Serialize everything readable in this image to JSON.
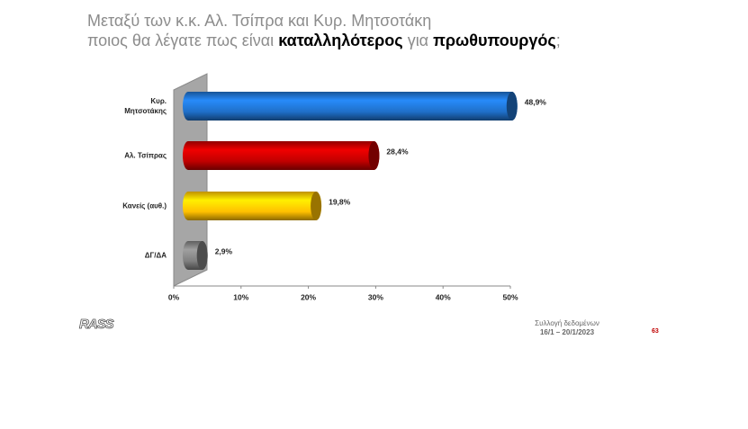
{
  "chart_data": {
    "type": "bar",
    "orientation": "horizontal",
    "title": [
      "Μεταξύ των κ.κ. Αλ. Τσίπρα και Κυρ. Μητσοτάκη",
      "ποιος θα λέγατε πως είναι",
      "καταλληλότερος",
      "για",
      "πρωθυπουργός",
      ";"
    ],
    "categories": [
      "Κυρ.\nΜητσοτάκης",
      "Αλ. Τσίπρας",
      "Κανείς (αυθ.)",
      "ΔΓ/ΔΑ"
    ],
    "values": [
      48.9,
      28.4,
      19.8,
      2.9
    ],
    "value_labels": [
      "48,9%",
      "28,4%",
      "19,8%",
      "2,9%"
    ],
    "colors": [
      "#1f6fc8",
      "#c00000",
      "#ffc000",
      "#7f7f7f"
    ],
    "xlim": [
      0,
      50
    ],
    "xticks": [
      {
        "value": 0,
        "label": "0%"
      },
      {
        "value": 10,
        "label": "10%"
      },
      {
        "value": 20,
        "label": "20%"
      },
      {
        "value": 30,
        "label": "30%"
      },
      {
        "value": 40,
        "label": "40%"
      },
      {
        "value": 50,
        "label": "50%"
      }
    ],
    "logo": "RASS",
    "footer": [
      "Συλλογή δεδομένων",
      "16/1 – 20/1/2023"
    ],
    "page_number": "63"
  }
}
